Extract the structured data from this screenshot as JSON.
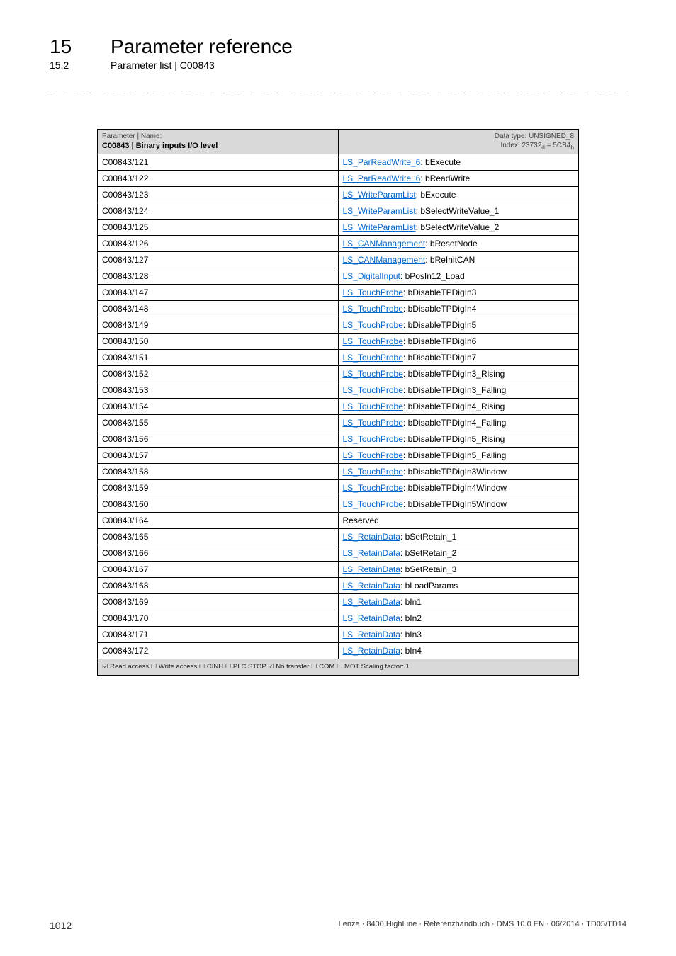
{
  "header": {
    "chapter_number": "15",
    "chapter_title": "Parameter reference",
    "sub_number": "15.2",
    "sub_title": "Parameter list | C00843"
  },
  "divider": "_ _ _ _ _ _ _ _ _ _ _ _ _ _ _ _ _ _ _ _ _ _ _ _ _ _ _ _ _ _ _ _ _ _ _ _ _ _ _ _ _ _ _ _ _ _ _ _ _ _ _ _ _ _ _ _ _ _ _ _ _ _ _ _",
  "table": {
    "header": {
      "left_label": "Parameter | Name:",
      "left_bold": "C00843 | Binary inputs I/O level",
      "right_label": "Data type: UNSIGNED_8",
      "right_index_prefix": "Index: 23732",
      "right_index_d": "d",
      "right_index_eq": " = 5CB4",
      "right_index_h": "h"
    },
    "rows": [
      {
        "code": "C00843/121",
        "link": "LS_ParReadWrite_6",
        "sep": ": ",
        "suffix": "bExecute"
      },
      {
        "code": "C00843/122",
        "link": "LS_ParReadWrite_6",
        "sep": ": ",
        "suffix": "bReadWrite"
      },
      {
        "code": "C00843/123",
        "link": "LS_WriteParamList",
        "sep": ": ",
        "suffix": "bExecute"
      },
      {
        "code": "C00843/124",
        "link": "LS_WriteParamList",
        "sep": ": ",
        "suffix": "bSelectWriteValue_1"
      },
      {
        "code": "C00843/125",
        "link": "LS_WriteParamList",
        "sep": ": ",
        "suffix": "bSelectWriteValue_2"
      },
      {
        "code": "C00843/126",
        "link": "LS_CANManagement",
        "sep": ": ",
        "suffix": "bResetNode"
      },
      {
        "code": "C00843/127",
        "link": "LS_CANManagement",
        "sep": ": ",
        "suffix": "bReInitCAN"
      },
      {
        "code": "C00843/128",
        "link": "LS_DigitalInput",
        "sep": ": ",
        "suffix": "bPosIn12_Load"
      },
      {
        "code": "C00843/147",
        "link": "LS_TouchProbe",
        "sep": ": ",
        "suffix": "bDisableTPDigIn3"
      },
      {
        "code": "C00843/148",
        "link": "LS_TouchProbe",
        "sep": ": ",
        "suffix": "bDisableTPDigIn4"
      },
      {
        "code": "C00843/149",
        "link": "LS_TouchProbe",
        "sep": ": ",
        "suffix": "bDisableTPDigIn5"
      },
      {
        "code": "C00843/150",
        "link": "LS_TouchProbe",
        "sep": ": ",
        "suffix": "bDisableTPDigIn6"
      },
      {
        "code": "C00843/151",
        "link": "LS_TouchProbe",
        "sep": ": ",
        "suffix": "bDisableTPDigIn7"
      },
      {
        "code": "C00843/152",
        "link": "LS_TouchProbe",
        "sep": ": ",
        "suffix": "bDisableTPDigIn3_Rising"
      },
      {
        "code": "C00843/153",
        "link": "LS_TouchProbe",
        "sep": ": ",
        "suffix": "bDisableTPDigIn3_Falling"
      },
      {
        "code": "C00843/154",
        "link": "LS_TouchProbe",
        "sep": ": ",
        "suffix": "bDisableTPDigIn4_Rising"
      },
      {
        "code": "C00843/155",
        "link": "LS_TouchProbe",
        "sep": ": ",
        "suffix": "bDisableTPDigIn4_Falling"
      },
      {
        "code": "C00843/156",
        "link": "LS_TouchProbe",
        "sep": ": ",
        "suffix": "bDisableTPDigIn5_Rising"
      },
      {
        "code": "C00843/157",
        "link": "LS_TouchProbe",
        "sep": ": ",
        "suffix": "bDisableTPDigIn5_Falling"
      },
      {
        "code": "C00843/158",
        "link": "LS_TouchProbe",
        "sep": ": ",
        "suffix": "bDisableTPDigIn3Window"
      },
      {
        "code": "C00843/159",
        "link": "LS_TouchProbe",
        "sep": ": ",
        "suffix": "bDisableTPDigIn4Window"
      },
      {
        "code": "C00843/160",
        "link": "LS_TouchProbe",
        "sep": ": ",
        "suffix": "bDisableTPDigIn5Window"
      },
      {
        "code": "C00843/164",
        "link": "",
        "sep": "",
        "suffix": "Reserved"
      },
      {
        "code": "C00843/165",
        "link": "LS_RetainData",
        "sep": ": ",
        "suffix": "bSetRetain_1"
      },
      {
        "code": "C00843/166",
        "link": "LS_RetainData",
        "sep": ": ",
        "suffix": "bSetRetain_2"
      },
      {
        "code": "C00843/167",
        "link": "LS_RetainData",
        "sep": ": ",
        "suffix": "bSetRetain_3"
      },
      {
        "code": "C00843/168",
        "link": "LS_RetainData",
        "sep": ": ",
        "suffix": "bLoadParams"
      },
      {
        "code": "C00843/169",
        "link": "LS_RetainData",
        "sep": ": ",
        "suffix": "bIn1"
      },
      {
        "code": "C00843/170",
        "link": "LS_RetainData",
        "sep": ": ",
        "suffix": "bIn2"
      },
      {
        "code": "C00843/171",
        "link": "LS_RetainData",
        "sep": ": ",
        "suffix": "bIn3"
      },
      {
        "code": "C00843/172",
        "link": "LS_RetainData",
        "sep": ": ",
        "suffix": "bIn4"
      }
    ],
    "footer": "☑ Read access   ☐ Write access   ☐ CINH   ☐ PLC STOP   ☑ No transfer   ☐ COM   ☐ MOT    Scaling factor: 1"
  },
  "footer": {
    "page": "1012",
    "right": "Lenze · 8400 HighLine · Referenzhandbuch · DMS 10.0 EN · 06/2014 · TD05/TD14"
  }
}
